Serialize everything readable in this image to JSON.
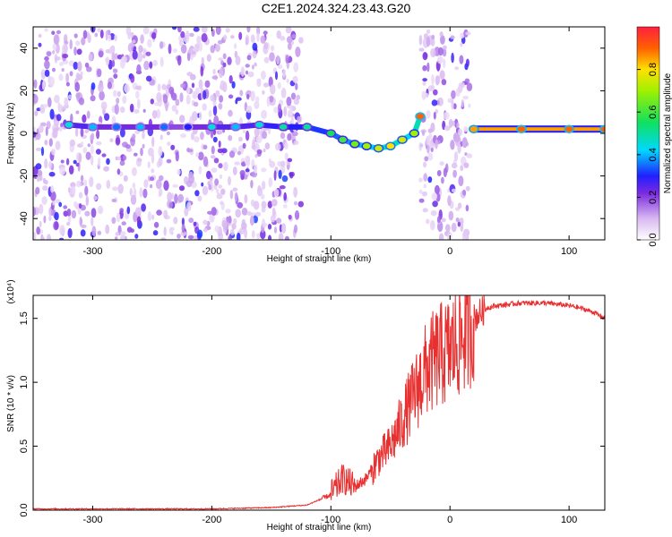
{
  "chart_data": [
    {
      "type": "heatmap",
      "title": "C2E1.2024.324.23.43.G20",
      "xlabel": "Height of straight line (km)",
      "ylabel": "Frequency (Hz)",
      "xlim": [
        -350,
        130
      ],
      "ylim": [
        -50,
        50
      ],
      "xticks": [
        "-300",
        "-200",
        "-100",
        "0",
        "100"
      ],
      "yticks": [
        "-40",
        "-20",
        "0",
        "20",
        "40"
      ],
      "colorbar": {
        "label": "Normalized spectral amplitude",
        "ticks": [
          "0.0",
          "0.2",
          "0.4",
          "0.6",
          "0.8"
        ],
        "range": [
          0,
          1
        ]
      },
      "signal_track": [
        {
          "x": -320,
          "y": 4,
          "amp": 0.45
        },
        {
          "x": -300,
          "y": 3,
          "amp": 0.4
        },
        {
          "x": -280,
          "y": 3,
          "amp": 0.35
        },
        {
          "x": -260,
          "y": 3,
          "amp": 0.4
        },
        {
          "x": -240,
          "y": 3,
          "amp": 0.35
        },
        {
          "x": -220,
          "y": 3,
          "amp": 0.3
        },
        {
          "x": -200,
          "y": 3,
          "amp": 0.45
        },
        {
          "x": -180,
          "y": 3,
          "amp": 0.4
        },
        {
          "x": -160,
          "y": 4,
          "amp": 0.45
        },
        {
          "x": -140,
          "y": 3,
          "amp": 0.5
        },
        {
          "x": -120,
          "y": 3,
          "amp": 0.5
        },
        {
          "x": -100,
          "y": 0,
          "amp": 0.55
        },
        {
          "x": -90,
          "y": -3,
          "amp": 0.6
        },
        {
          "x": -80,
          "y": -5,
          "amp": 0.65
        },
        {
          "x": -70,
          "y": -6,
          "amp": 0.7
        },
        {
          "x": -60,
          "y": -7,
          "amp": 0.75
        },
        {
          "x": -50,
          "y": -6,
          "amp": 0.8
        },
        {
          "x": -40,
          "y": -3,
          "amp": 0.75
        },
        {
          "x": -30,
          "y": 0,
          "amp": 0.7
        },
        {
          "x": -25,
          "y": 8,
          "amp": 0.9
        },
        {
          "x": 20,
          "y": 2,
          "amp": 0.85
        },
        {
          "x": 60,
          "y": 2,
          "amp": 0.9
        },
        {
          "x": 100,
          "y": 2,
          "amp": 0.9
        },
        {
          "x": 130,
          "y": 2,
          "amp": 0.9
        }
      ],
      "noise_regions": [
        {
          "x_from": -350,
          "x_to": -125,
          "y_from": -50,
          "y_to": 50
        },
        {
          "x_from": -25,
          "x_to": 17,
          "y_from": -50,
          "y_to": 50
        }
      ]
    },
    {
      "type": "line",
      "title": "",
      "xlabel": "Height of straight line (km)",
      "ylabel": "SNR (10 * v/v)",
      "yscale_label": "(x10⁴)",
      "xlim": [
        -350,
        130
      ],
      "ylim": [
        0,
        1.68
      ],
      "xticks": [
        "-300",
        "-200",
        "-100",
        "0",
        "100"
      ],
      "yticks": [
        "0.0",
        "0.5",
        "1.0",
        "1.5"
      ],
      "series": [
        {
          "color": "#e83030",
          "x": [
            -350,
            -300,
            -250,
            -200,
            -150,
            -120,
            -100,
            -90,
            -80,
            -70,
            -60,
            -50,
            -40,
            -30,
            -20,
            -10,
            0,
            10,
            20,
            30,
            40,
            60,
            80,
            100,
            110,
            120,
            130
          ],
          "y": [
            0.01,
            0.01,
            0.01,
            0.01,
            0.02,
            0.04,
            0.12,
            0.25,
            0.18,
            0.25,
            0.4,
            0.5,
            0.7,
            0.9,
            1.1,
            1.2,
            1.25,
            1.35,
            1.5,
            1.58,
            1.6,
            1.62,
            1.62,
            1.6,
            1.58,
            1.55,
            1.5
          ]
        }
      ]
    }
  ]
}
